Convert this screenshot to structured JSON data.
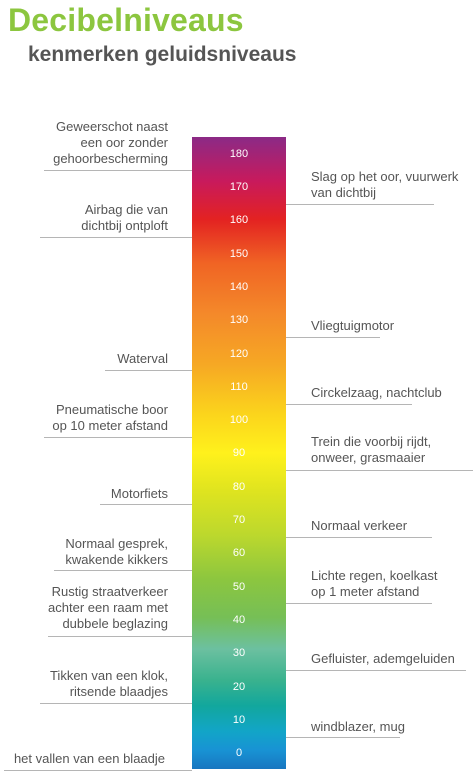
{
  "title": "Decibelniveaus",
  "subtitle": "kenmerken geluidsniveaus",
  "scale": {
    "ticks": [
      "180",
      "170",
      "160",
      "150",
      "140",
      "130",
      "120",
      "110",
      "100",
      "90",
      "80",
      "70",
      "60",
      "50",
      "40",
      "30",
      "20",
      "10",
      "0"
    ]
  },
  "labels_left": [
    "Geweerschot naast\neen oor zonder\ngehoorbescherming",
    "Airbag die van\ndichtbij ontploft",
    "Waterval",
    "Pneumatische boor\nop 10 meter afstand",
    "Motorfiets",
    "Normaal gesprek,\nkwakende kikkers",
    "Rustig straatverkeer\nachter een raam met\ndubbele beglazing",
    "Tikken van een klok,\nritsende blaadjes",
    "het vallen van een blaadje"
  ],
  "labels_right": [
    "Slag op het oor, vuurwerk\nvan dichtbij",
    "Vliegtuigmotor",
    "Circkelzaag, nachtclub",
    "Trein die voorbij rijdt,\nonweer, grasmaaier",
    "Normaal verkeer",
    "Lichte regen, koelkast\nop 1 meter afstand",
    "Gefluister, ademgeluiden",
    "windblazer, mug"
  ]
}
